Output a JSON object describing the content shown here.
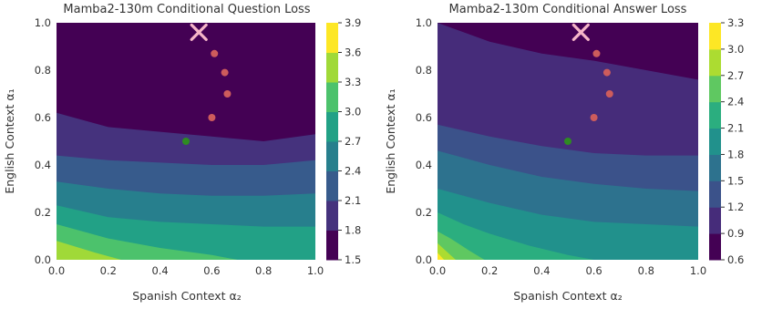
{
  "chart_data": [
    {
      "type": "contour",
      "title": "Mamba2-130m Conditional Question Loss",
      "xlabel": "Spanish Context α₂",
      "ylabel": "English Context α₁",
      "xlim": [
        0.0,
        1.0
      ],
      "ylim": [
        0.0,
        1.0
      ],
      "xticks": [
        "0.0",
        "0.2",
        "0.4",
        "0.6",
        "0.8",
        "1.0"
      ],
      "yticks": [
        "0.0",
        "0.2",
        "0.4",
        "0.6",
        "0.8",
        "1.0"
      ],
      "colorbar": {
        "min": 1.5,
        "max": 3.9,
        "ticks": [
          "1.5",
          "1.8",
          "2.1",
          "2.4",
          "2.7",
          "3.0",
          "3.3",
          "3.6",
          "3.9"
        ]
      },
      "contour_boundaries": [
        [
          [
            0.0,
            0.62
          ],
          [
            0.2,
            0.56
          ],
          [
            0.4,
            0.54
          ],
          [
            0.6,
            0.52
          ],
          [
            0.8,
            0.5
          ],
          [
            1.0,
            0.53
          ]
        ],
        [
          [
            0.0,
            0.44
          ],
          [
            0.2,
            0.42
          ],
          [
            0.4,
            0.41
          ],
          [
            0.6,
            0.4
          ],
          [
            0.8,
            0.4
          ],
          [
            1.0,
            0.42
          ]
        ],
        [
          [
            0.0,
            0.33
          ],
          [
            0.2,
            0.3
          ],
          [
            0.4,
            0.28
          ],
          [
            0.6,
            0.27
          ],
          [
            0.8,
            0.27
          ],
          [
            1.0,
            0.28
          ]
        ],
        [
          [
            0.0,
            0.23
          ],
          [
            0.2,
            0.18
          ],
          [
            0.4,
            0.16
          ],
          [
            0.6,
            0.15
          ],
          [
            0.8,
            0.14
          ],
          [
            1.0,
            0.14
          ]
        ],
        [
          [
            0.0,
            0.15
          ],
          [
            0.2,
            0.09
          ],
          [
            0.4,
            0.05
          ],
          [
            0.6,
            0.02
          ],
          [
            0.7,
            0.0
          ]
        ],
        [
          [
            0.0,
            0.08
          ],
          [
            0.15,
            0.03
          ],
          [
            0.25,
            0.0
          ]
        ]
      ],
      "series": [
        {
          "marker": "x",
          "color": "#f6b6c8",
          "points": [
            [
              0.55,
              0.96
            ]
          ]
        },
        {
          "marker": "o",
          "color": "#cd5c5c",
          "points": [
            [
              0.61,
              0.87
            ],
            [
              0.65,
              0.79
            ],
            [
              0.66,
              0.7
            ],
            [
              0.6,
              0.6
            ]
          ]
        },
        {
          "marker": "o",
          "color": "#2e8b22",
          "points": [
            [
              0.5,
              0.5
            ]
          ]
        }
      ]
    },
    {
      "type": "contour",
      "title": "Mamba2-130m Conditional Answer Loss",
      "xlabel": "Spanish Context α₂",
      "ylabel": "English Context α₁",
      "xlim": [
        0.0,
        1.0
      ],
      "ylim": [
        0.0,
        1.0
      ],
      "xticks": [
        "0.0",
        "0.2",
        "0.4",
        "0.6",
        "0.8",
        "1.0"
      ],
      "yticks": [
        "0.0",
        "0.2",
        "0.4",
        "0.6",
        "0.8",
        "1.0"
      ],
      "colorbar": {
        "min": 0.6,
        "max": 3.3,
        "ticks": [
          "0.6",
          "0.9",
          "1.2",
          "1.5",
          "1.8",
          "2.1",
          "2.4",
          "2.7",
          "3.0",
          "3.3"
        ]
      },
      "contour_boundaries": [
        [
          [
            0.0,
            1.0
          ],
          [
            0.2,
            0.92
          ],
          [
            0.4,
            0.87
          ],
          [
            0.6,
            0.84
          ],
          [
            0.8,
            0.8
          ],
          [
            1.0,
            0.76
          ]
        ],
        [
          [
            0.0,
            0.57
          ],
          [
            0.2,
            0.52
          ],
          [
            0.4,
            0.48
          ],
          [
            0.6,
            0.45
          ],
          [
            0.8,
            0.44
          ],
          [
            1.0,
            0.44
          ]
        ],
        [
          [
            0.0,
            0.46
          ],
          [
            0.2,
            0.4
          ],
          [
            0.4,
            0.35
          ],
          [
            0.6,
            0.32
          ],
          [
            0.8,
            0.3
          ],
          [
            1.0,
            0.29
          ]
        ],
        [
          [
            0.0,
            0.3
          ],
          [
            0.2,
            0.24
          ],
          [
            0.4,
            0.19
          ],
          [
            0.6,
            0.16
          ],
          [
            0.8,
            0.15
          ],
          [
            1.0,
            0.14
          ]
        ],
        [
          [
            0.0,
            0.2
          ],
          [
            0.1,
            0.15
          ],
          [
            0.2,
            0.11
          ],
          [
            0.35,
            0.06
          ],
          [
            0.5,
            0.02
          ],
          [
            0.6,
            0.0
          ]
        ],
        [
          [
            0.0,
            0.12
          ],
          [
            0.05,
            0.09
          ],
          [
            0.12,
            0.04
          ],
          [
            0.18,
            0.0
          ]
        ],
        [
          [
            0.0,
            0.07
          ],
          [
            0.04,
            0.03
          ],
          [
            0.07,
            0.0
          ]
        ],
        [
          [
            0.0,
            0.03
          ],
          [
            0.025,
            0.0
          ]
        ]
      ],
      "series": [
        {
          "marker": "x",
          "color": "#f6b6c8",
          "points": [
            [
              0.55,
              0.96
            ]
          ]
        },
        {
          "marker": "o",
          "color": "#cd5c5c",
          "points": [
            [
              0.61,
              0.87
            ],
            [
              0.65,
              0.79
            ],
            [
              0.66,
              0.7
            ],
            [
              0.6,
              0.6
            ]
          ]
        },
        {
          "marker": "o",
          "color": "#2e8b22",
          "points": [
            [
              0.5,
              0.5
            ]
          ]
        }
      ]
    }
  ]
}
